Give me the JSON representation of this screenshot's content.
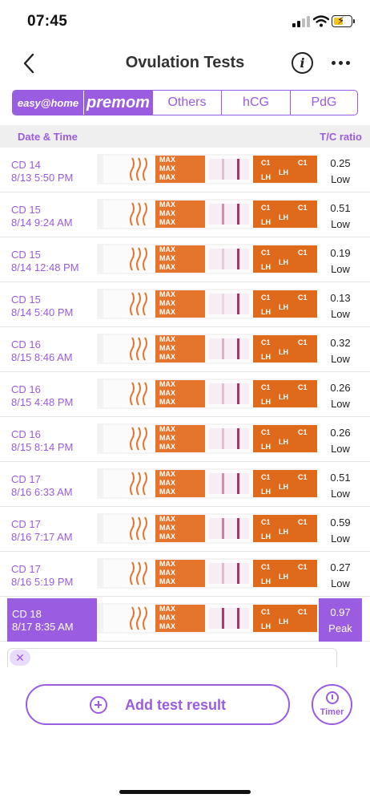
{
  "status_bar": {
    "time": "07:45"
  },
  "header": {
    "title": "Ovulation Tests"
  },
  "tabs": [
    {
      "label": "easy@home",
      "selected": true
    },
    {
      "label": "premom",
      "selected": true
    },
    {
      "label": "Others",
      "selected": false
    },
    {
      "label": "hCG",
      "selected": false
    },
    {
      "label": "PdG",
      "selected": false
    }
  ],
  "table": {
    "col_date": "Date & Time",
    "col_ratio": "T/C ratio",
    "rows": [
      {
        "cd": "CD 14",
        "datetime": "8/13 5:50 PM",
        "ratio": "0.25",
        "level": "Low",
        "t_intensity": 0.25,
        "highlight": false
      },
      {
        "cd": "CD 15",
        "datetime": "8/14 9:24 AM",
        "ratio": "0.51",
        "level": "Low",
        "t_intensity": 0.51,
        "highlight": false
      },
      {
        "cd": "CD 15",
        "datetime": "8/14 12:48 PM",
        "ratio": "0.19",
        "level": "Low",
        "t_intensity": 0.19,
        "highlight": false
      },
      {
        "cd": "CD 15",
        "datetime": "8/14 5:40 PM",
        "ratio": "0.13",
        "level": "Low",
        "t_intensity": 0.13,
        "highlight": false
      },
      {
        "cd": "CD 16",
        "datetime": "8/15 8:46 AM",
        "ratio": "0.32",
        "level": "Low",
        "t_intensity": 0.32,
        "highlight": false
      },
      {
        "cd": "CD 16",
        "datetime": "8/15 4:48 PM",
        "ratio": "0.26",
        "level": "Low",
        "t_intensity": 0.26,
        "highlight": false
      },
      {
        "cd": "CD 16",
        "datetime": "8/15 8:14 PM",
        "ratio": "0.26",
        "level": "Low",
        "t_intensity": 0.26,
        "highlight": false
      },
      {
        "cd": "CD 17",
        "datetime": "8/16 6:33 AM",
        "ratio": "0.51",
        "level": "Low",
        "t_intensity": 0.51,
        "highlight": false
      },
      {
        "cd": "CD 17",
        "datetime": "8/16 7:17 AM",
        "ratio": "0.59",
        "level": "Low",
        "t_intensity": 0.59,
        "highlight": false
      },
      {
        "cd": "CD 17",
        "datetime": "8/16 5:19 PM",
        "ratio": "0.27",
        "level": "Low",
        "t_intensity": 0.27,
        "highlight": false
      },
      {
        "cd": "CD 18",
        "datetime": "8/17 8:35 AM",
        "ratio": "0.97",
        "level": "Peak",
        "t_intensity": 0.97,
        "highlight": true
      }
    ]
  },
  "strip": {
    "max_text": "MAX",
    "lh_text": "LH",
    "c_text": "C1"
  },
  "actions": {
    "add_label": "Add test result",
    "timer_label": "Timer"
  },
  "colors": {
    "accent": "#9a5ce0",
    "strip_orange": "#e06a1c",
    "line": "#a5356b"
  }
}
